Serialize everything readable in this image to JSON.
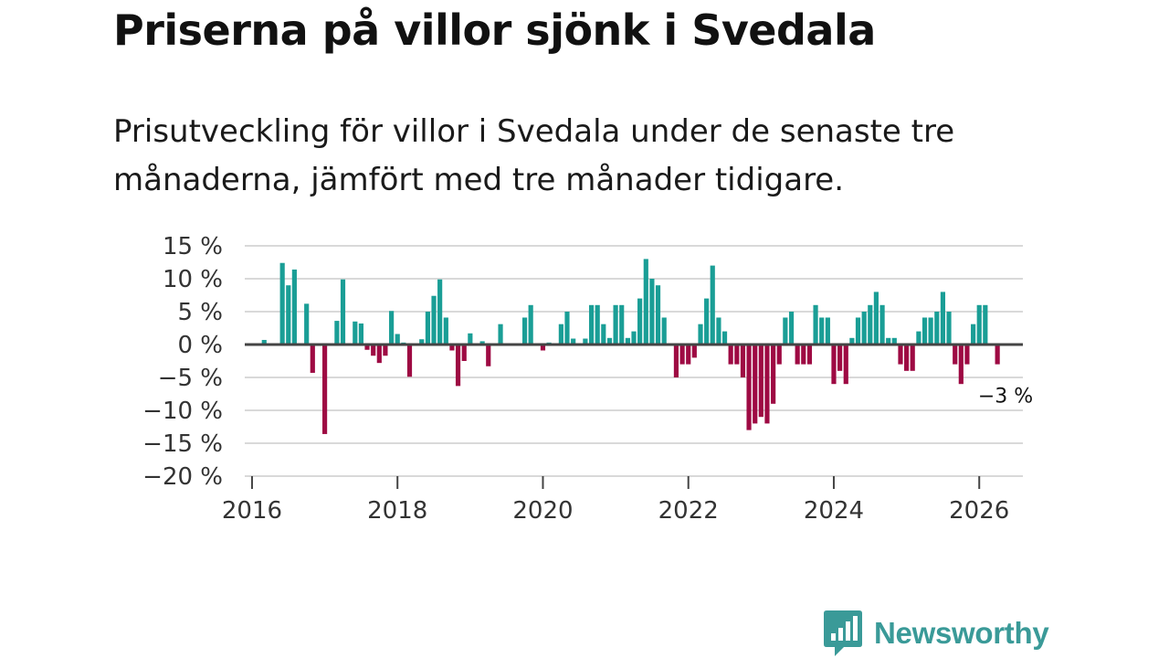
{
  "title": "Priserna på villor sjönk i Svedala",
  "subtitle": "Prisutveckling för villor i Svedala under de senaste tre månaderna, jämfört med tre månader tidigare.",
  "brand": "Newsworthy",
  "colors": {
    "positive": "#1a9e96",
    "negative": "#9e0a43",
    "grid": "#d9d9d9",
    "zero": "#444444",
    "brand": "#3a9a98"
  },
  "chart_data": {
    "type": "bar",
    "title": "Priserna på villor sjönk i Svedala",
    "xlabel": "",
    "ylabel": "",
    "xlim": [
      2015.9,
      2026.6
    ],
    "ylim": [
      -20,
      15
    ],
    "y_ticks": [
      15,
      10,
      5,
      0,
      -5,
      -10,
      -15,
      -20
    ],
    "y_tick_labels": [
      "15 %",
      "10 %",
      "5 %",
      "0 %",
      "−5 %",
      "−10 %",
      "−15 %",
      "−20 %"
    ],
    "x_ticks": [
      2016,
      2018,
      2020,
      2022,
      2024,
      2026
    ],
    "x_tick_labels": [
      "2016",
      "2018",
      "2020",
      "2022",
      "2024",
      "2026"
    ],
    "annotation": {
      "text": "−3 %",
      "x": 2026.083,
      "y": -3
    },
    "bars": [
      {
        "x": 2016.167,
        "value": 0.7
      },
      {
        "x": 2016.417,
        "value": 12.4
      },
      {
        "x": 2016.5,
        "value": 9.0
      },
      {
        "x": 2016.583,
        "value": 11.4
      },
      {
        "x": 2016.75,
        "value": 6.2
      },
      {
        "x": 2016.833,
        "value": -4.3
      },
      {
        "x": 2017.0,
        "value": -13.6
      },
      {
        "x": 2017.167,
        "value": 3.6
      },
      {
        "x": 2017.25,
        "value": 9.9
      },
      {
        "x": 2017.417,
        "value": 3.5
      },
      {
        "x": 2017.5,
        "value": 3.2
      },
      {
        "x": 2017.583,
        "value": -0.8
      },
      {
        "x": 2017.667,
        "value": -1.7
      },
      {
        "x": 2017.75,
        "value": -2.8
      },
      {
        "x": 2017.833,
        "value": -1.7
      },
      {
        "x": 2017.917,
        "value": 5.1
      },
      {
        "x": 2018.0,
        "value": 1.6
      },
      {
        "x": 2018.083,
        "value": 0.3
      },
      {
        "x": 2018.167,
        "value": -4.9
      },
      {
        "x": 2018.333,
        "value": 0.8
      },
      {
        "x": 2018.417,
        "value": 5.0
      },
      {
        "x": 2018.5,
        "value": 7.4
      },
      {
        "x": 2018.583,
        "value": 9.9
      },
      {
        "x": 2018.667,
        "value": 4.1
      },
      {
        "x": 2018.75,
        "value": -0.9
      },
      {
        "x": 2018.833,
        "value": -6.3
      },
      {
        "x": 2018.917,
        "value": -2.5
      },
      {
        "x": 2019.0,
        "value": 1.7
      },
      {
        "x": 2019.167,
        "value": 0.5
      },
      {
        "x": 2019.25,
        "value": -3.3
      },
      {
        "x": 2019.417,
        "value": 3.1
      },
      {
        "x": 2019.75,
        "value": 4.1
      },
      {
        "x": 2019.833,
        "value": 6.0
      },
      {
        "x": 2020.0,
        "value": -0.9
      },
      {
        "x": 2020.083,
        "value": 0.3
      },
      {
        "x": 2020.25,
        "value": 3.1
      },
      {
        "x": 2020.333,
        "value": 5.0
      },
      {
        "x": 2020.417,
        "value": 0.9
      },
      {
        "x": 2020.583,
        "value": 0.9
      },
      {
        "x": 2020.667,
        "value": 6.0
      },
      {
        "x": 2020.75,
        "value": 6.0
      },
      {
        "x": 2020.833,
        "value": 3.1
      },
      {
        "x": 2020.917,
        "value": 1.0
      },
      {
        "x": 2021.0,
        "value": 6.0
      },
      {
        "x": 2021.083,
        "value": 6.0
      },
      {
        "x": 2021.167,
        "value": 1.0
      },
      {
        "x": 2021.25,
        "value": 2.0
      },
      {
        "x": 2021.333,
        "value": 7.0
      },
      {
        "x": 2021.417,
        "value": 13.0
      },
      {
        "x": 2021.5,
        "value": 10.0
      },
      {
        "x": 2021.583,
        "value": 9.0
      },
      {
        "x": 2021.667,
        "value": 4.1
      },
      {
        "x": 2021.833,
        "value": -5.0
      },
      {
        "x": 2021.917,
        "value": -3.0
      },
      {
        "x": 2022.0,
        "value": -3.0
      },
      {
        "x": 2022.083,
        "value": -2.0
      },
      {
        "x": 2022.167,
        "value": 3.1
      },
      {
        "x": 2022.25,
        "value": 7.0
      },
      {
        "x": 2022.333,
        "value": 12.0
      },
      {
        "x": 2022.417,
        "value": 4.1
      },
      {
        "x": 2022.5,
        "value": 2.0
      },
      {
        "x": 2022.583,
        "value": -3.0
      },
      {
        "x": 2022.667,
        "value": -3.0
      },
      {
        "x": 2022.75,
        "value": -5.0
      },
      {
        "x": 2022.833,
        "value": -13.0
      },
      {
        "x": 2022.917,
        "value": -12.0
      },
      {
        "x": 2023.0,
        "value": -11.0
      },
      {
        "x": 2023.083,
        "value": -12.0
      },
      {
        "x": 2023.167,
        "value": -9.0
      },
      {
        "x": 2023.25,
        "value": -3.0
      },
      {
        "x": 2023.333,
        "value": 4.1
      },
      {
        "x": 2023.417,
        "value": 5.0
      },
      {
        "x": 2023.5,
        "value": -3.0
      },
      {
        "x": 2023.583,
        "value": -3.0
      },
      {
        "x": 2023.667,
        "value": -3.0
      },
      {
        "x": 2023.75,
        "value": 6.0
      },
      {
        "x": 2023.833,
        "value": 4.1
      },
      {
        "x": 2023.917,
        "value": 4.1
      },
      {
        "x": 2024.0,
        "value": -6.0
      },
      {
        "x": 2024.083,
        "value": -4.0
      },
      {
        "x": 2024.167,
        "value": -6.0
      },
      {
        "x": 2024.25,
        "value": 1.0
      },
      {
        "x": 2024.333,
        "value": 4.1
      },
      {
        "x": 2024.417,
        "value": 5.0
      },
      {
        "x": 2024.5,
        "value": 6.0
      },
      {
        "x": 2024.583,
        "value": 8.0
      },
      {
        "x": 2024.667,
        "value": 6.0
      },
      {
        "x": 2024.75,
        "value": 1.0
      },
      {
        "x": 2024.833,
        "value": 1.0
      },
      {
        "x": 2024.917,
        "value": -3.0
      },
      {
        "x": 2025.0,
        "value": -4.0
      },
      {
        "x": 2025.083,
        "value": -4.0
      },
      {
        "x": 2025.167,
        "value": 2.0
      },
      {
        "x": 2025.25,
        "value": 4.1
      },
      {
        "x": 2025.333,
        "value": 4.1
      },
      {
        "x": 2025.417,
        "value": 5.0
      },
      {
        "x": 2025.5,
        "value": 8.0
      },
      {
        "x": 2025.583,
        "value": 5.0
      },
      {
        "x": 2025.667,
        "value": -3.0
      },
      {
        "x": 2025.75,
        "value": -6.0
      },
      {
        "x": 2025.833,
        "value": -3.0
      },
      {
        "x": 2025.917,
        "value": 3.1
      },
      {
        "x": 2026.0,
        "value": 6.0
      },
      {
        "x": 2026.083,
        "value": 6.0
      },
      {
        "x": 2026.25,
        "value": -3.0
      }
    ]
  }
}
